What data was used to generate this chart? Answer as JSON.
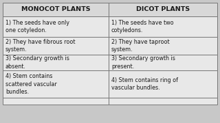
{
  "col1_header": "MONOCOT PLANTS",
  "col2_header": "DICOT PLANTS",
  "rows": [
    [
      "1) The seeds have only\none cotyledon.",
      "1) The seeds have two\ncotyledons."
    ],
    [
      "2) They have fibrous root\nsystem.",
      "2) They have taproot\nsystem."
    ],
    [
      "3) Secondary growth is\nabsent.",
      "3) Secondary growth is\npresent."
    ],
    [
      "4) Stem contains\nscattered vascular\nbundles.",
      "4) Stem contains ring of\nvascular bundles."
    ]
  ],
  "bg_color": "#c8c8c8",
  "header_bg": "#d8d8d8",
  "cell_bg": "#e8e8e8",
  "border_color": "#777777",
  "text_color": "#1a1a1a",
  "header_fontsize": 6.8,
  "cell_fontsize": 5.8,
  "fig_width": 3.2,
  "fig_height": 1.8
}
